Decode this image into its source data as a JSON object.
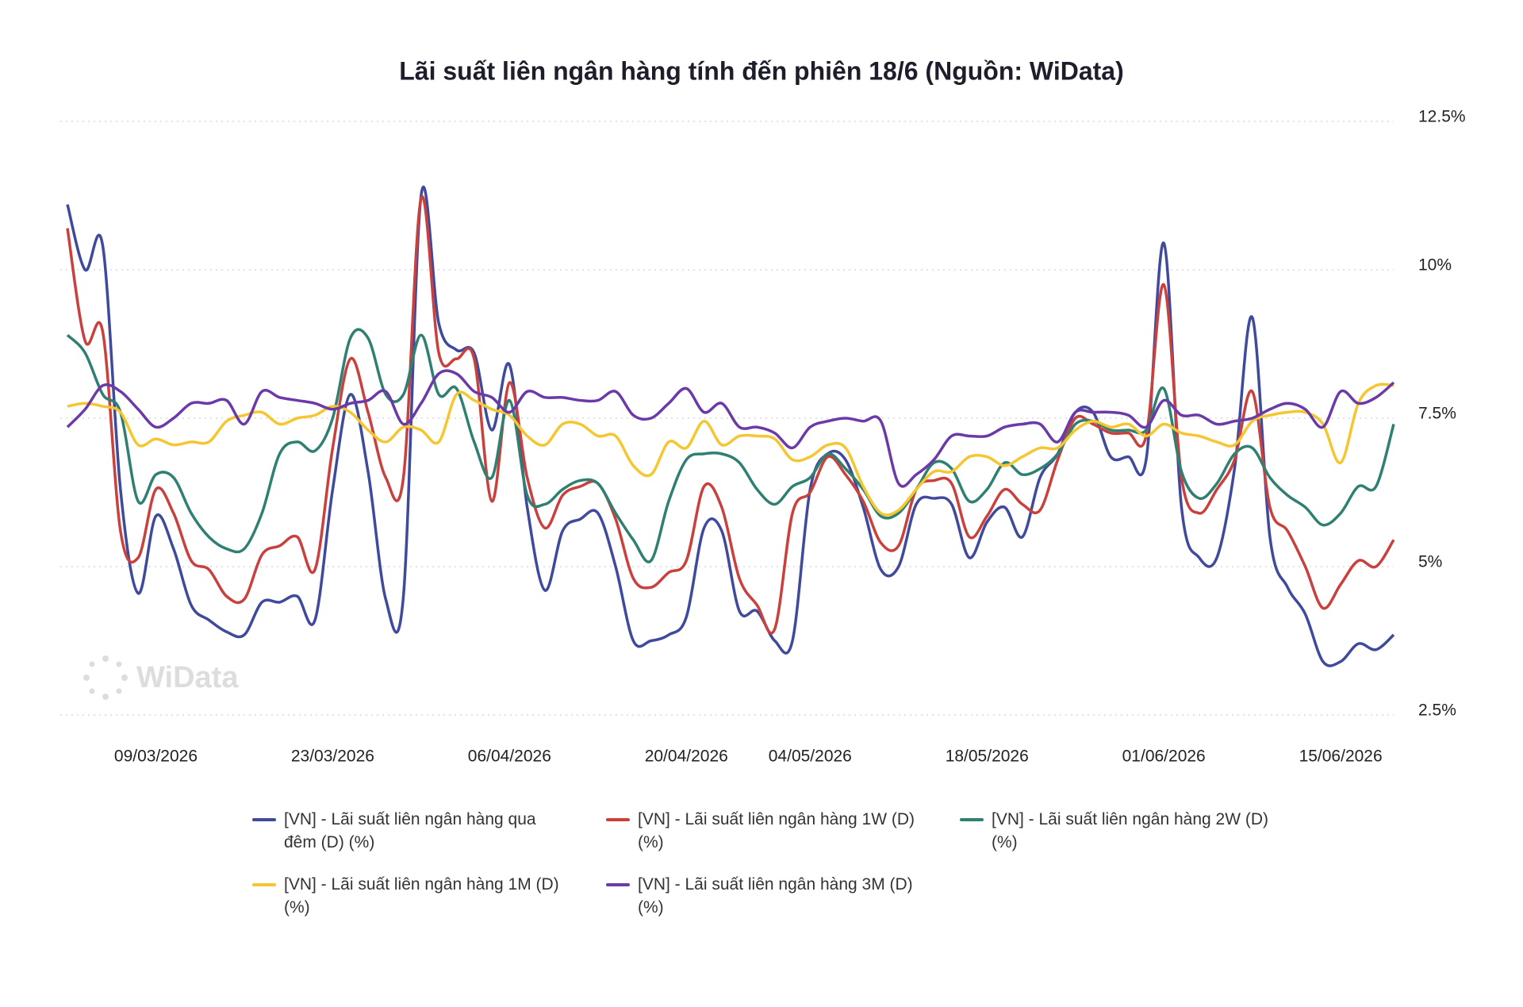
{
  "chart_data": {
    "type": "line",
    "title": "Lãi suất liên ngân hàng tính đến phiên 18/6 (Nguồn: WiData)",
    "watermark": "WiData",
    "categories": [
      null,
      null,
      null,
      null,
      null,
      "09/03/2026",
      null,
      null,
      null,
      null,
      null,
      null,
      null,
      null,
      null,
      "23/03/2026",
      null,
      null,
      null,
      null,
      null,
      null,
      null,
      null,
      null,
      "06/04/2026",
      null,
      null,
      null,
      null,
      null,
      null,
      null,
      null,
      null,
      "20/04/2026",
      null,
      null,
      null,
      null,
      null,
      null,
      "04/05/2026",
      null,
      null,
      null,
      null,
      null,
      null,
      null,
      null,
      null,
      "18/05/2026",
      null,
      null,
      null,
      null,
      null,
      null,
      null,
      null,
      null,
      "01/06/2026",
      null,
      null,
      null,
      null,
      null,
      null,
      null,
      null,
      null,
      "15/06/2026",
      null,
      null,
      null
    ],
    "ylim": [
      2.5,
      12.5
    ],
    "yticks": [
      {
        "value": 2.5,
        "label": "2.5%"
      },
      {
        "value": 5,
        "label": "5%"
      },
      {
        "value": 7.5,
        "label": "7.5%"
      },
      {
        "value": 10,
        "label": "10%"
      },
      {
        "value": 12.5,
        "label": "12.5%"
      }
    ],
    "grid": true,
    "series": [
      {
        "name": "[VN] - Lãi suất liên ngân hàng qua đêm (D) (%)",
        "color": "#3f4a9c",
        "values": [
          11.1,
          10.0,
          10.4,
          6.3,
          4.55,
          5.85,
          5.3,
          4.35,
          4.1,
          3.9,
          3.85,
          4.4,
          4.4,
          4.5,
          4.1,
          6.3,
          7.9,
          6.6,
          4.45,
          4.5,
          11.25,
          9.1,
          8.65,
          8.6,
          7.3,
          8.4,
          6.0,
          4.6,
          5.6,
          5.8,
          5.9,
          5.0,
          3.75,
          3.75,
          3.85,
          4.15,
          5.65,
          5.6,
          4.25,
          4.25,
          3.75,
          3.75,
          6.3,
          6.9,
          6.8,
          6.0,
          4.95,
          5.0,
          6.05,
          6.15,
          6.05,
          5.15,
          5.75,
          6.0,
          5.5,
          6.5,
          6.9,
          7.6,
          7.6,
          6.85,
          6.85,
          6.8,
          10.45,
          6.0,
          5.15,
          5.15,
          6.65,
          9.2,
          5.5,
          4.65,
          4.2,
          3.4,
          3.4,
          3.7,
          3.6,
          3.85
        ]
      },
      {
        "name": "[VN] - Lãi suất liên ngân hàng 1W (D) (%)",
        "color": "#c9403d",
        "values": [
          10.7,
          8.8,
          8.95,
          5.6,
          5.15,
          6.3,
          5.9,
          5.1,
          4.95,
          4.5,
          4.45,
          5.2,
          5.35,
          5.5,
          4.95,
          7.0,
          8.5,
          7.6,
          6.5,
          6.5,
          11.2,
          8.6,
          8.5,
          8.5,
          6.1,
          8.1,
          6.5,
          5.65,
          6.2,
          6.35,
          6.4,
          5.8,
          4.8,
          4.65,
          4.9,
          5.1,
          6.35,
          6.0,
          4.8,
          4.35,
          3.95,
          5.9,
          6.25,
          6.85,
          6.55,
          6.1,
          5.4,
          5.35,
          6.3,
          6.45,
          6.4,
          5.5,
          5.85,
          6.3,
          6.05,
          5.95,
          6.8,
          7.5,
          7.4,
          7.25,
          7.25,
          7.2,
          9.75,
          6.5,
          5.9,
          6.3,
          6.8,
          7.95,
          6.0,
          5.6,
          5.0,
          4.3,
          4.7,
          5.1,
          5.0,
          5.45
        ]
      },
      {
        "name": "[VN] - Lãi suất liên ngân hàng 2W (D) (%)",
        "color": "#2f8072",
        "values": [
          8.9,
          8.6,
          7.9,
          7.6,
          6.1,
          6.55,
          6.5,
          5.9,
          5.5,
          5.3,
          5.3,
          5.9,
          6.9,
          7.1,
          6.95,
          7.5,
          8.85,
          8.85,
          7.9,
          7.9,
          8.9,
          7.9,
          8.0,
          7.1,
          6.5,
          7.8,
          6.2,
          6.05,
          6.3,
          6.45,
          6.4,
          5.9,
          5.45,
          5.1,
          6.1,
          6.8,
          6.9,
          6.9,
          6.75,
          6.3,
          6.05,
          6.35,
          6.5,
          6.9,
          6.65,
          6.3,
          5.85,
          5.9,
          6.3,
          6.75,
          6.65,
          6.1,
          6.3,
          6.75,
          6.55,
          6.65,
          6.9,
          7.4,
          7.45,
          7.3,
          7.3,
          7.3,
          8.0,
          6.6,
          6.15,
          6.4,
          6.9,
          7.0,
          6.5,
          6.2,
          6.0,
          5.7,
          5.9,
          6.35,
          6.35,
          7.4
        ]
      },
      {
        "name": "[VN] - Lãi suất liên ngân hàng 1M (D) (%)",
        "color": "#f6c630",
        "values": [
          7.7,
          7.75,
          7.7,
          7.6,
          7.05,
          7.15,
          7.05,
          7.1,
          7.1,
          7.45,
          7.55,
          7.6,
          7.4,
          7.5,
          7.55,
          7.7,
          7.6,
          7.3,
          7.1,
          7.35,
          7.3,
          7.1,
          7.9,
          7.8,
          7.65,
          7.55,
          7.2,
          7.05,
          7.4,
          7.4,
          7.2,
          7.2,
          6.7,
          6.55,
          7.1,
          7.0,
          7.45,
          7.05,
          7.2,
          7.2,
          7.15,
          6.8,
          6.85,
          7.05,
          7.0,
          6.35,
          5.9,
          5.95,
          6.3,
          6.6,
          6.6,
          6.85,
          6.85,
          6.7,
          6.85,
          7.0,
          7.0,
          7.3,
          7.45,
          7.35,
          7.4,
          7.2,
          7.4,
          7.25,
          7.2,
          7.1,
          7.05,
          7.45,
          7.55,
          7.6,
          7.6,
          7.4,
          6.75,
          7.75,
          8.05,
          8.05
        ]
      },
      {
        "name": "[VN] - Lãi suất liên ngân hàng 3M (D) (%)",
        "color": "#6b3aa8",
        "values": [
          7.35,
          7.65,
          8.05,
          7.95,
          7.65,
          7.35,
          7.5,
          7.75,
          7.75,
          7.8,
          7.4,
          7.95,
          7.85,
          7.8,
          7.75,
          7.65,
          7.75,
          7.8,
          7.95,
          7.4,
          7.75,
          8.25,
          8.25,
          7.95,
          7.85,
          7.6,
          7.95,
          7.85,
          7.85,
          7.8,
          7.8,
          7.95,
          7.55,
          7.5,
          7.75,
          8.0,
          7.6,
          7.75,
          7.35,
          7.35,
          7.25,
          7.0,
          7.35,
          7.45,
          7.5,
          7.45,
          7.45,
          6.4,
          6.55,
          6.8,
          7.2,
          7.2,
          7.2,
          7.35,
          7.4,
          7.4,
          7.1,
          7.6,
          7.6,
          7.6,
          7.55,
          7.35,
          7.8,
          7.55,
          7.55,
          7.4,
          7.45,
          7.5,
          7.65,
          7.75,
          7.65,
          7.35,
          7.95,
          7.75,
          7.85,
          8.1
        ]
      }
    ]
  }
}
